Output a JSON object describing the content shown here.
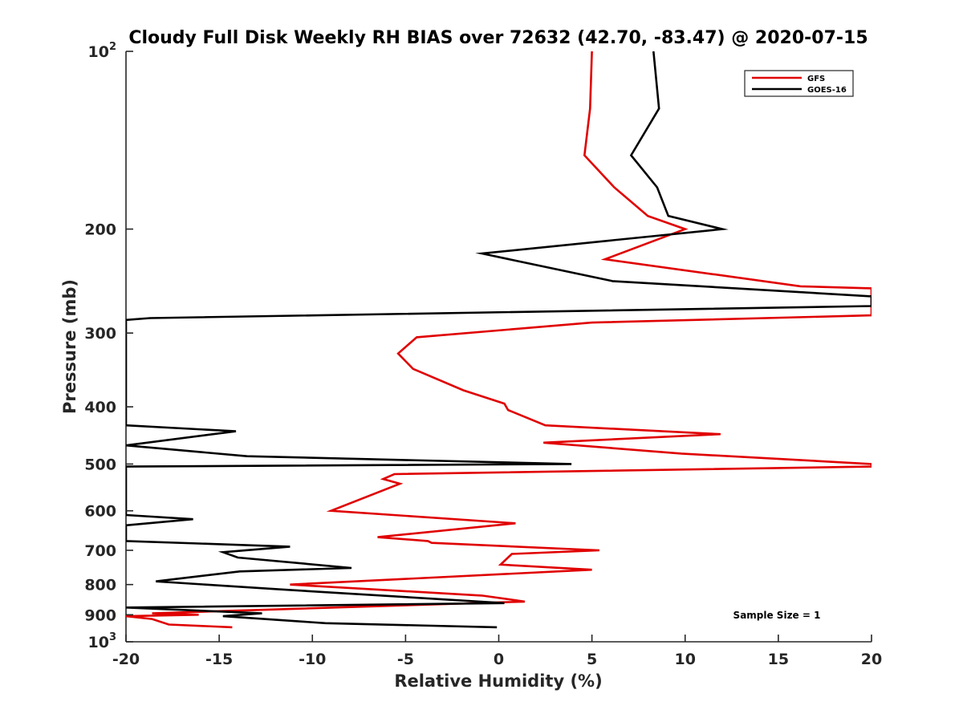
{
  "chart_data": {
    "type": "line",
    "title": "Cloudy Full Disk Weekly RH BIAS over 72632 (42.70, -83.47) @ 2020-07-15",
    "xlabel": "Relative Humidity (%)",
    "ylabel": "Pressure (mb)",
    "xlim": [
      -20,
      20
    ],
    "ylim": [
      100,
      1000
    ],
    "y_scale": "log",
    "y_reversed": true,
    "grid": false,
    "x_ticks": [
      "-20",
      "-15",
      "-10",
      "-5",
      "0",
      "5",
      "10",
      "15",
      "20"
    ],
    "y_ticks": [
      {
        "value": 100,
        "base": "10",
        "exp": "2"
      },
      {
        "value": 200,
        "label": "200"
      },
      {
        "value": 300,
        "label": "300"
      },
      {
        "value": 400,
        "label": "400"
      },
      {
        "value": 500,
        "label": "500"
      },
      {
        "value": 600,
        "label": "600"
      },
      {
        "value": 700,
        "label": "700"
      },
      {
        "value": 800,
        "label": "800"
      },
      {
        "value": 900,
        "label": "900"
      },
      {
        "value": 1000,
        "base": "10",
        "exp": "3"
      }
    ],
    "legend_position": "top-right",
    "annotation": "Sample Size = 1",
    "series": [
      {
        "name": "GFS",
        "color": "#e00000",
        "points": [
          [
            5.0,
            100
          ],
          [
            4.9,
            125
          ],
          [
            4.6,
            150
          ],
          [
            6.2,
            170
          ],
          [
            8.0,
            190
          ],
          [
            10.0,
            200
          ],
          [
            5.7,
            225
          ],
          [
            16.2,
            250
          ],
          [
            20.0,
            252
          ],
          [
            20.0,
            280
          ],
          [
            5.0,
            288
          ],
          [
            -4.4,
            305
          ],
          [
            -5.4,
            325
          ],
          [
            -4.6,
            345
          ],
          [
            -1.9,
            375
          ],
          [
            0.3,
            395
          ],
          [
            0.5,
            405
          ],
          [
            2.5,
            430
          ],
          [
            11.9,
            445
          ],
          [
            2.4,
            460
          ],
          [
            9.8,
            480
          ],
          [
            20.0,
            500
          ],
          [
            20.0,
            505
          ],
          [
            -5.6,
            520
          ],
          [
            -6.2,
            530
          ],
          [
            -5.3,
            540
          ],
          [
            -9.0,
            600
          ],
          [
            0.9,
            630
          ],
          [
            -6.5,
            665
          ],
          [
            -3.8,
            675
          ],
          [
            -3.6,
            680
          ],
          [
            5.4,
            700
          ],
          [
            0.7,
            710
          ],
          [
            0.1,
            740
          ],
          [
            5.0,
            755
          ],
          [
            -11.2,
            800
          ],
          [
            -0.9,
            835
          ],
          [
            1.4,
            855
          ],
          [
            -18.6,
            895
          ],
          [
            -16.1,
            900
          ],
          [
            -20.0,
            905
          ],
          [
            -18.6,
            915
          ],
          [
            -17.7,
            935
          ],
          [
            -14.3,
            945
          ]
        ]
      },
      {
        "name": "GOES-16",
        "color": "#000000",
        "points": [
          [
            8.3,
            100
          ],
          [
            8.6,
            125
          ],
          [
            7.1,
            150
          ],
          [
            8.5,
            170
          ],
          [
            9.1,
            190
          ],
          [
            12.0,
            200
          ],
          [
            -0.9,
            220
          ],
          [
            6.1,
            245
          ],
          [
            20.0,
            260
          ],
          [
            20.0,
            270
          ],
          [
            -18.7,
            283
          ],
          [
            -20.0,
            285
          ],
          [
            -20.0,
            430
          ],
          [
            -14.1,
            440
          ],
          [
            -20.0,
            465
          ],
          [
            -13.5,
            485
          ],
          [
            3.9,
            500
          ],
          [
            -20.0,
            505
          ],
          [
            -20.0,
            610
          ],
          [
            -16.4,
            620
          ],
          [
            -20.0,
            635
          ],
          [
            -20.0,
            675
          ],
          [
            -11.2,
            690
          ],
          [
            -14.8,
            705
          ],
          [
            -14.0,
            720
          ],
          [
            -7.9,
            750
          ],
          [
            -13.9,
            760
          ],
          [
            -18.4,
            790
          ],
          [
            -11.8,
            815
          ],
          [
            0.3,
            860
          ],
          [
            -20.0,
            875
          ],
          [
            -12.7,
            895
          ],
          [
            -14.8,
            905
          ],
          [
            -9.3,
            930
          ],
          [
            -0.1,
            945
          ]
        ]
      }
    ]
  }
}
